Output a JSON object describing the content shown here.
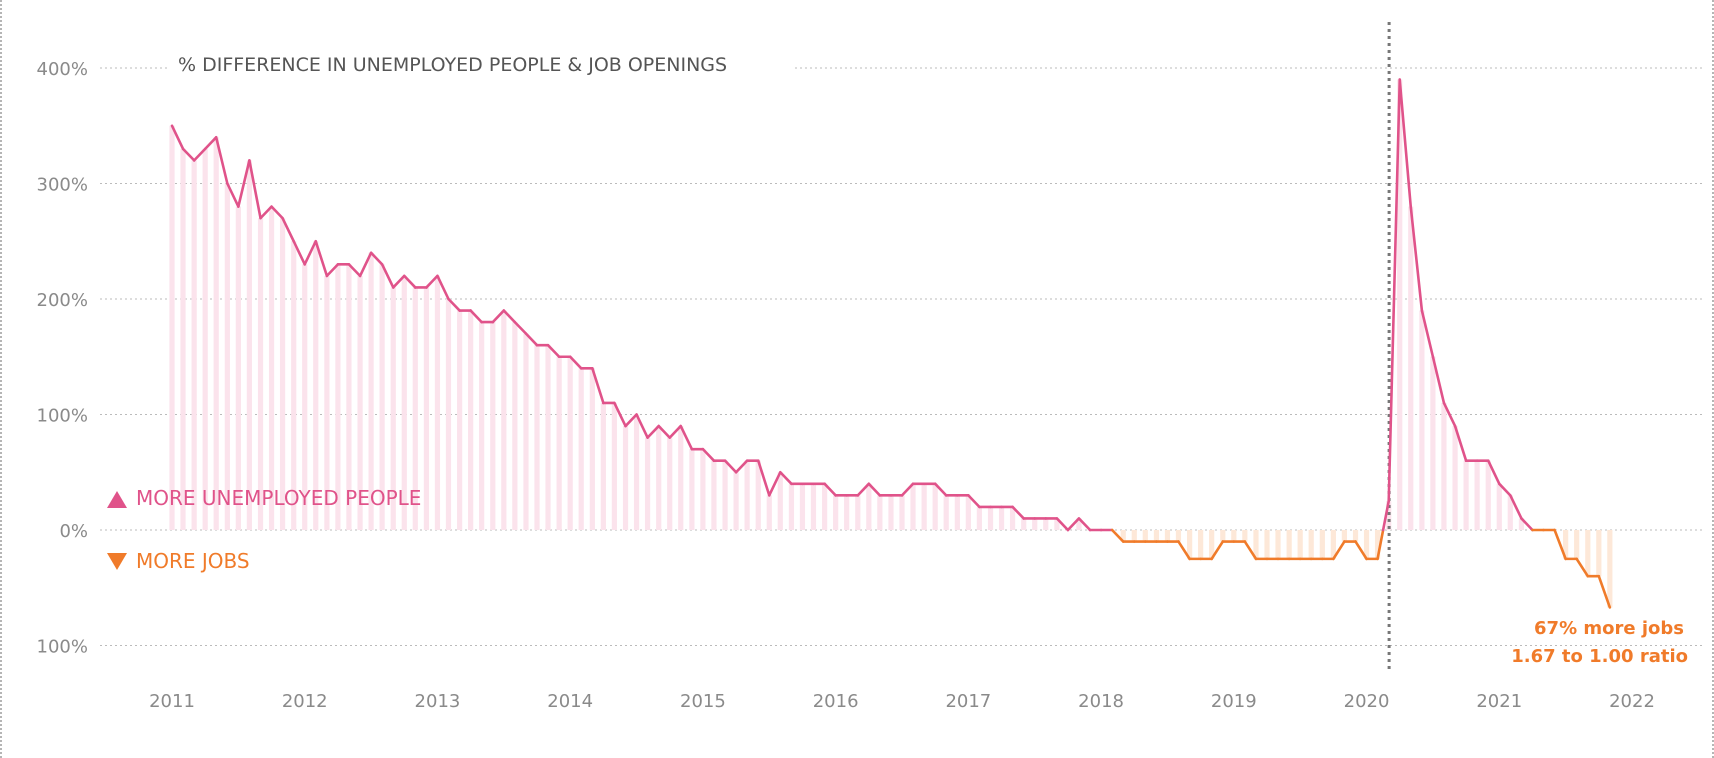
{
  "chart_data": {
    "type": "line",
    "title": "% DIFFERENCE IN UNEMPLOYED PEOPLE & JOB OPENINGS",
    "xlabel": "",
    "ylabel": "",
    "x_range": [
      2011,
      2022
    ],
    "ylim": [
      -100,
      400
    ],
    "y_ticks": [
      {
        "value": 400,
        "label": "400%"
      },
      {
        "value": 300,
        "label": "300%"
      },
      {
        "value": 200,
        "label": "200%"
      },
      {
        "value": 100,
        "label": "100%"
      },
      {
        "value": 0,
        "label": "0%"
      },
      {
        "value": -100,
        "label": "100%"
      }
    ],
    "x_ticks": [
      {
        "value": 2011,
        "label": "2011"
      },
      {
        "value": 2012,
        "label": "2012"
      },
      {
        "value": 2013,
        "label": "2013"
      },
      {
        "value": 2014,
        "label": "2014"
      },
      {
        "value": 2015,
        "label": "2015"
      },
      {
        "value": 2016,
        "label": "2016"
      },
      {
        "value": 2017,
        "label": "2017"
      },
      {
        "value": 2018,
        "label": "2018"
      },
      {
        "value": 2019,
        "label": "2019"
      },
      {
        "value": 2020,
        "label": "2020"
      },
      {
        "value": 2021,
        "label": "2021"
      },
      {
        "value": 2022,
        "label": "2022"
      }
    ],
    "grid": true,
    "reference_line_x": 2020.17,
    "legend": {
      "positive_label": "MORE UNEMPLOYED PEOPLE",
      "negative_label": "MORE JOBS"
    },
    "annotation": {
      "line1": "67% more jobs",
      "line2": "1.67 to 1.00 ratio"
    },
    "colors": {
      "positive": "#e0538a",
      "negative": "#f07b2a",
      "positive_fill": "#fbe3ec",
      "negative_fill": "#fde8d8",
      "grid": "#bbbbbb",
      "reference": "#777777",
      "tick": "#8a8a8a",
      "title": "#555555"
    },
    "series": [
      {
        "x": [
          2011.0,
          2011.083,
          2011.167,
          2011.25,
          2011.333,
          2011.417,
          2011.5,
          2011.583,
          2011.667,
          2011.75,
          2011.833,
          2011.917,
          2012.0,
          2012.083,
          2012.167,
          2012.25,
          2012.333,
          2012.417,
          2012.5,
          2012.583,
          2012.667,
          2012.75,
          2012.833,
          2012.917,
          2013.0,
          2013.083,
          2013.167,
          2013.25,
          2013.333,
          2013.417,
          2013.5,
          2013.583,
          2013.667,
          2013.75,
          2013.833,
          2013.917,
          2014.0,
          2014.083,
          2014.167,
          2014.25,
          2014.333,
          2014.417,
          2014.5,
          2014.583,
          2014.667,
          2014.75,
          2014.833,
          2014.917,
          2015.0,
          2015.083,
          2015.167,
          2015.25,
          2015.333,
          2015.417,
          2015.5,
          2015.583,
          2015.667,
          2015.75,
          2015.833,
          2015.917,
          2016.0,
          2016.083,
          2016.167,
          2016.25,
          2016.333,
          2016.417,
          2016.5,
          2016.583,
          2016.667,
          2016.75,
          2016.833,
          2016.917,
          2017.0,
          2017.083,
          2017.167,
          2017.25,
          2017.333,
          2017.417,
          2017.5,
          2017.583,
          2017.667,
          2017.75,
          2017.833,
          2017.917,
          2018.0,
          2018.083,
          2018.167,
          2018.25,
          2018.333,
          2018.417,
          2018.5,
          2018.583,
          2018.667,
          2018.75,
          2018.833,
          2018.917,
          2019.0,
          2019.083,
          2019.167,
          2019.25,
          2019.333,
          2019.417,
          2019.5,
          2019.583,
          2019.667,
          2019.75,
          2019.833,
          2019.917,
          2020.0,
          2020.083,
          2020.167,
          2020.25,
          2020.333,
          2020.417,
          2020.5,
          2020.583,
          2020.667,
          2020.75,
          2020.833,
          2020.917,
          2021.0,
          2021.083,
          2021.167,
          2021.25,
          2021.333,
          2021.417,
          2021.5,
          2021.583,
          2021.667,
          2021.75,
          2021.833
        ],
        "values": [
          350,
          330,
          320,
          330,
          340,
          300,
          280,
          320,
          270,
          280,
          270,
          250,
          230,
          250,
          220,
          230,
          230,
          220,
          240,
          230,
          210,
          220,
          210,
          210,
          220,
          200,
          190,
          190,
          180,
          180,
          190,
          180,
          170,
          160,
          160,
          150,
          150,
          140,
          140,
          110,
          110,
          90,
          100,
          80,
          90,
          80,
          90,
          70,
          70,
          60,
          60,
          50,
          60,
          60,
          30,
          50,
          40,
          40,
          40,
          40,
          30,
          30,
          30,
          40,
          30,
          30,
          30,
          40,
          40,
          40,
          30,
          30,
          30,
          20,
          20,
          20,
          20,
          10,
          10,
          10,
          10,
          0,
          10,
          0,
          0,
          0,
          -10,
          -10,
          -10,
          -10,
          -10,
          -10,
          -25,
          -25,
          -25,
          -10,
          -10,
          -10,
          -25,
          -25,
          -25,
          -25,
          -25,
          -25,
          -25,
          -25,
          -10,
          -10,
          -25,
          -25,
          25,
          390,
          280,
          190,
          150,
          110,
          90,
          60,
          60,
          60,
          40,
          30,
          10,
          0,
          0,
          0,
          -25,
          -25,
          -40,
          -40,
          -67
        ]
      }
    ]
  }
}
